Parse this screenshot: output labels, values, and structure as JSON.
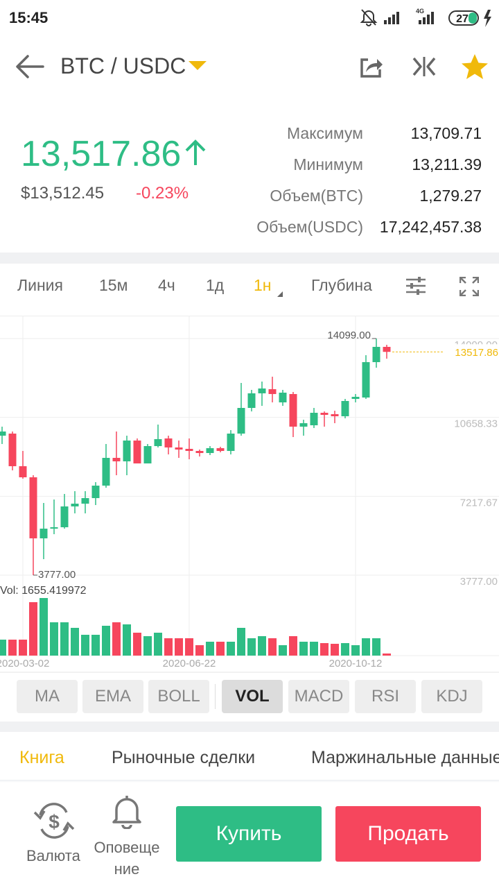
{
  "status_bar": {
    "time": "15:45",
    "network": "4G",
    "battery": "27"
  },
  "header": {
    "pair": "BTC / USDC"
  },
  "ticker": {
    "price": "13,517.86",
    "price_usd": "$13,512.45",
    "change": "-0.23%",
    "stats": [
      {
        "label": "Максимум",
        "value": "13,709.71"
      },
      {
        "label": "Минимум",
        "value": "13,211.39"
      },
      {
        "label": "Объем(BTC)",
        "value": "1,279.27"
      },
      {
        "label": "Объем(USDC)",
        "value": "17,242,457.38"
      }
    ]
  },
  "interval_tabs": [
    {
      "label": "Линия",
      "selected": false
    },
    {
      "label": "15м",
      "selected": false
    },
    {
      "label": "4ч",
      "selected": false
    },
    {
      "label": "1д",
      "selected": false
    },
    {
      "label": "1н",
      "selected": true
    },
    {
      "label": "Глубина",
      "selected": false
    }
  ],
  "chart_data": {
    "type": "candlestick",
    "categories": [
      null,
      null,
      "2020-03-02",
      null,
      null,
      null,
      null,
      null,
      null,
      null,
      null,
      null,
      null,
      null,
      null,
      null,
      null,
      null,
      "2020-06-22",
      null,
      null,
      null,
      null,
      null,
      null,
      null,
      null,
      null,
      null,
      null,
      null,
      null,
      null,
      null,
      "2020-10-12",
      null,
      null,
      null
    ],
    "open": [
      9861,
      9952,
      8529,
      8045,
      5381,
      5805,
      5866,
      6774,
      6895,
      7137,
      7682,
      8893,
      8741,
      9649,
      8650,
      9407,
      9740,
      9347,
      9286,
      9195,
      9104,
      9316,
      9195,
      9952,
      11072,
      11709,
      11890,
      11314,
      11678,
      10255,
      10315,
      10860,
      10800,
      10709,
      11465,
      11526,
      13070,
      13736
    ],
    "high": [
      10255,
      10043,
      9195,
      8136,
      6925,
      7076,
      7319,
      7440,
      7440,
      7833,
      9498,
      10043,
      9861,
      9740,
      9498,
      10346,
      9861,
      9649,
      9740,
      9256,
      9407,
      9377,
      10103,
      12162,
      11859,
      12222,
      12435,
      11859,
      11768,
      10557,
      11072,
      10920,
      10950,
      11465,
      11678,
      13373,
      14099,
      13827
    ],
    "low": [
      9498,
      8348,
      7985,
      3777,
      4473,
      5563,
      5805,
      6471,
      6471,
      6834,
      7591,
      8136,
      8136,
      8650,
      8650,
      9347,
      9044,
      8893,
      8832,
      8953,
      9014,
      9135,
      9044,
      9861,
      10920,
      11163,
      11314,
      11163,
      9801,
      9861,
      10194,
      10255,
      10406,
      10618,
      11314,
      11465,
      12828,
      13222
    ],
    "close": [
      10043,
      8529,
      8045,
      5381,
      5805,
      5866,
      6774,
      6895,
      7137,
      7682,
      8893,
      8741,
      9649,
      8650,
      9407,
      9710,
      9347,
      9256,
      9195,
      9104,
      9316,
      9195,
      9952,
      11072,
      11709,
      11920,
      11678,
      11738,
      10255,
      10406,
      10860,
      10769,
      10709,
      11375,
      11556,
      13070,
      13736,
      13517.86
    ],
    "volume": [
      12650,
      12650,
      12650,
      42350,
      45650,
      26400,
      26400,
      22000,
      16500,
      16500,
      23650,
      26400,
      24750,
      18150,
      15400,
      18150,
      13750,
      13750,
      13750,
      8250,
      11000,
      11000,
      11000,
      22000,
      13750,
      15400,
      13750,
      8250,
      15400,
      11000,
      11000,
      9900,
      9350,
      9900,
      8250,
      13750,
      13750,
      1655.419972
    ],
    "up_color": "#2ebd85",
    "down_color": "#f6465d",
    "ylim": [
      3777,
      14099
    ],
    "yticks": [
      {
        "value": 14099,
        "label": "14099.00"
      },
      {
        "value": 10658.33,
        "label": "10658.33"
      },
      {
        "value": 7217.67,
        "label": "7217.67"
      },
      {
        "value": 3777,
        "label": "3777.00"
      }
    ],
    "grid": true,
    "max_label": {
      "value": 14099,
      "label": "14099.00"
    },
    "min_label": {
      "value": 3777,
      "label": "3777.00"
    },
    "last_price": {
      "value": 13517.86,
      "label": "13517.86",
      "color": "#f0b90b"
    },
    "volume_label": "Vol: 1655.419972"
  },
  "indicators": [
    {
      "label": "MA",
      "selected": false
    },
    {
      "label": "EMA",
      "selected": false
    },
    {
      "label": "BOLL",
      "selected": false
    },
    {
      "label": "VOL",
      "selected": true
    },
    {
      "label": "MACD",
      "selected": false
    },
    {
      "label": "RSI",
      "selected": false
    },
    {
      "label": "KDJ",
      "selected": false
    }
  ],
  "bottom_tabs": [
    {
      "label": "Книга",
      "selected": true
    },
    {
      "label": "Рыночные сделки",
      "selected": false
    },
    {
      "label": "Маржинальные данные",
      "selected": false
    }
  ],
  "actions": {
    "currency": "Валюта",
    "alerts": "Оповещение",
    "buy": "Купить",
    "sell": "Продать"
  }
}
